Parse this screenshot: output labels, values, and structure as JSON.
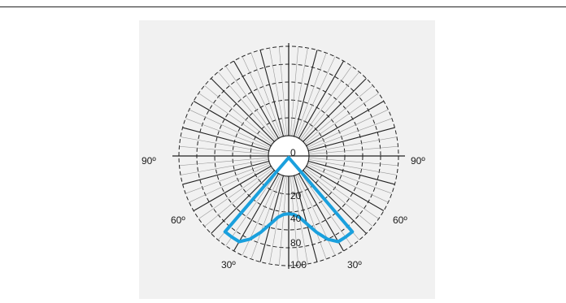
{
  "colors": {
    "page_background": "#ffffff",
    "panel_background": "#f1f1f1",
    "grid": "#222222",
    "curve": "#1aa0dd"
  },
  "chart_data": {
    "type": "polar",
    "title": "",
    "angle_labels": [
      "90º",
      "60º",
      "30º",
      "30º",
      "60º",
      "90º"
    ],
    "radial_labels": [
      "0",
      "20",
      "40",
      "80",
      "100"
    ],
    "radial_range": [
      0,
      100
    ],
    "grid": true,
    "series": [
      {
        "color": "#1aa0dd",
        "angle_deg": [
          -40,
          -35,
          -30,
          -25,
          -20,
          -15,
          -10,
          -5,
          0,
          5,
          10,
          15,
          20,
          25,
          30,
          35,
          40
        ],
        "values": [
          88,
          88,
          88,
          80,
          68,
          56,
          47,
          43,
          42,
          43,
          47,
          56,
          68,
          80,
          88,
          88,
          88
        ]
      }
    ]
  }
}
